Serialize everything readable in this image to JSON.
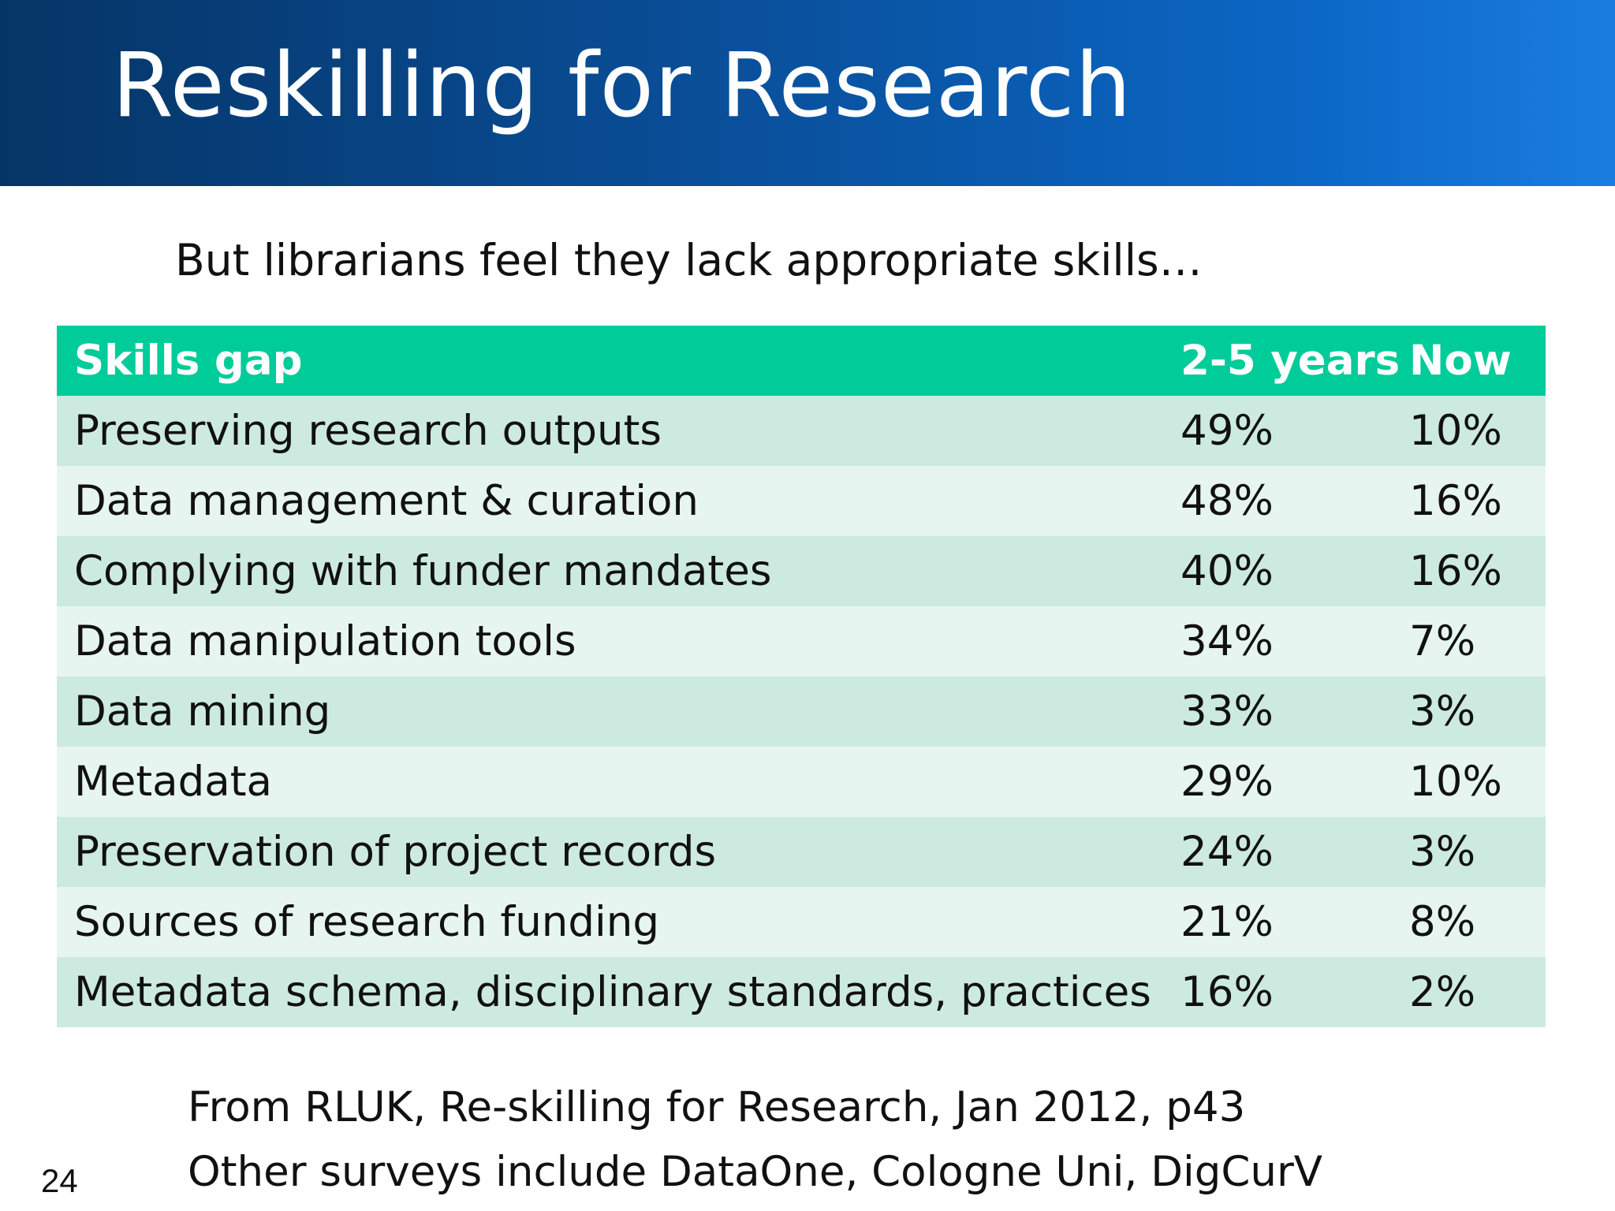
{
  "slide": {
    "title": "Reskilling for Research",
    "subtitle": "But librarians feel they lack appropriate skills…",
    "page_number": "24",
    "source_line": "From RLUK, Re-skilling for Research, Jan 2012, p43",
    "other_line": "Other surveys include DataOne, Cologne Uni, DigCurV"
  },
  "table": {
    "headers": {
      "skill": "Skills gap",
      "future": "2-5 years",
      "now": "Now"
    },
    "rows": [
      {
        "skill": "Preserving research outputs",
        "future": "49%",
        "now": "10%"
      },
      {
        "skill": "Data management & curation",
        "future": "48%",
        "now": "16%"
      },
      {
        "skill": "Complying with funder mandates",
        "future": "40%",
        "now": "16%"
      },
      {
        "skill": "Data manipulation tools",
        "future": "34%",
        "now": "7%"
      },
      {
        "skill": "Data mining",
        "future": "33%",
        "now": "3%"
      },
      {
        "skill": "Metadata",
        "future": "29%",
        "now": "10%"
      },
      {
        "skill": "Preservation of project records",
        "future": "24%",
        "now": "3%"
      },
      {
        "skill": "Sources of research funding",
        "future": "21%",
        "now": "8%"
      },
      {
        "skill": "Metadata schema, disciplinary standards, practices",
        "future": "16%",
        "now": "2%"
      }
    ]
  },
  "colors": {
    "title_bar_dark": "#053566",
    "title_bar_light": "#1a7ce0",
    "header_row": "#00cc9a",
    "row_odd": "#cdeae0",
    "row_even": "#e7f5f0"
  }
}
